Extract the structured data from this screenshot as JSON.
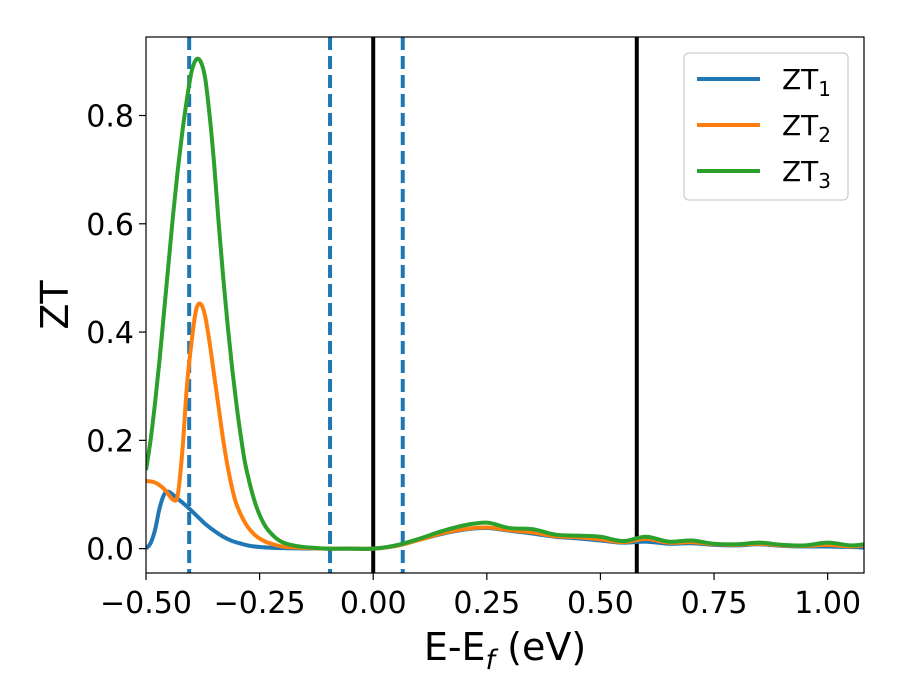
{
  "chart_data": {
    "type": "line",
    "xlabel": {
      "base": "E-E",
      "sub": "f",
      "suffix": " (eV)"
    },
    "ylabel": "ZT",
    "xlim": [
      -0.5,
      1.08
    ],
    "ylim": [
      -0.045,
      0.945
    ],
    "x_ticks": [
      {
        "value": -0.5,
        "label": "−0.50"
      },
      {
        "value": -0.25,
        "label": "−0.25"
      },
      {
        "value": 0.0,
        "label": "0.00"
      },
      {
        "value": 0.25,
        "label": "0.25"
      },
      {
        "value": 0.5,
        "label": "0.50"
      },
      {
        "value": 0.75,
        "label": "0.75"
      },
      {
        "value": 1.0,
        "label": "1.00"
      }
    ],
    "y_ticks": [
      {
        "value": 0.0,
        "label": "0.0"
      },
      {
        "value": 0.2,
        "label": "0.2"
      },
      {
        "value": 0.4,
        "label": "0.4"
      },
      {
        "value": 0.6,
        "label": "0.6"
      },
      {
        "value": 0.8,
        "label": "0.8"
      }
    ],
    "grid": false,
    "legend_position": "top-right",
    "vertical_lines": [
      {
        "x": -0.405,
        "style": "dashed",
        "color": "#1f77b4"
      },
      {
        "x": -0.095,
        "style": "dashed",
        "color": "#1f77b4"
      },
      {
        "x": 0.0,
        "style": "solid",
        "color": "#000000"
      },
      {
        "x": 0.065,
        "style": "dashed",
        "color": "#1f77b4"
      },
      {
        "x": 0.58,
        "style": "solid",
        "color": "#000000"
      }
    ],
    "series": [
      {
        "name": "ZT",
        "sub": "1",
        "color": "#1f77b4",
        "x": [
          -0.5,
          -0.49,
          -0.48,
          -0.47,
          -0.46,
          -0.45,
          -0.43,
          -0.41,
          -0.39,
          -0.37,
          -0.35,
          -0.33,
          -0.31,
          -0.29,
          -0.27,
          -0.25,
          -0.22,
          -0.19,
          -0.15,
          -0.1,
          -0.05,
          0.0,
          0.05,
          0.1,
          0.15,
          0.2,
          0.25,
          0.3,
          0.35,
          0.4,
          0.45,
          0.5,
          0.55,
          0.6,
          0.65,
          0.7,
          0.75,
          0.8,
          0.85,
          0.9,
          0.95,
          1.0,
          1.05,
          1.08
        ],
        "y": [
          0.0,
          0.01,
          0.035,
          0.075,
          0.1,
          0.105,
          0.092,
          0.078,
          0.062,
          0.046,
          0.033,
          0.022,
          0.014,
          0.009,
          0.005,
          0.003,
          0.0015,
          0.0008,
          0.0003,
          0.0001,
          0.0,
          0.0,
          0.005,
          0.016,
          0.027,
          0.035,
          0.038,
          0.033,
          0.028,
          0.022,
          0.019,
          0.015,
          0.011,
          0.013,
          0.009,
          0.01,
          0.007,
          0.006,
          0.008,
          0.005,
          0.004,
          0.004,
          0.003,
          0.002
        ]
      },
      {
        "name": "ZT",
        "sub": "2",
        "color": "#ff7f0e",
        "x": [
          -0.5,
          -0.48,
          -0.46,
          -0.44,
          -0.43,
          -0.42,
          -0.41,
          -0.4,
          -0.39,
          -0.38,
          -0.37,
          -0.36,
          -0.35,
          -0.34,
          -0.33,
          -0.32,
          -0.31,
          -0.3,
          -0.28,
          -0.26,
          -0.24,
          -0.22,
          -0.2,
          -0.17,
          -0.14,
          -0.1,
          -0.05,
          0.0,
          0.05,
          0.1,
          0.15,
          0.2,
          0.25,
          0.3,
          0.35,
          0.4,
          0.45,
          0.5,
          0.55,
          0.6,
          0.65,
          0.7,
          0.75,
          0.8,
          0.85,
          0.9,
          0.95,
          1.0,
          1.05,
          1.08
        ],
        "y": [
          0.125,
          0.122,
          0.11,
          0.09,
          0.1,
          0.18,
          0.3,
          0.38,
          0.44,
          0.452,
          0.43,
          0.38,
          0.32,
          0.26,
          0.2,
          0.15,
          0.11,
          0.08,
          0.045,
          0.025,
          0.014,
          0.008,
          0.004,
          0.002,
          0.001,
          0.0,
          0.0,
          0.0,
          0.005,
          0.016,
          0.028,
          0.036,
          0.039,
          0.034,
          0.03,
          0.023,
          0.021,
          0.017,
          0.012,
          0.018,
          0.011,
          0.012,
          0.008,
          0.007,
          0.009,
          0.006,
          0.005,
          0.007,
          0.004,
          0.006
        ]
      },
      {
        "name": "ZT",
        "sub": "3",
        "color": "#2ca02c",
        "x": [
          -0.5,
          -0.49,
          -0.48,
          -0.47,
          -0.46,
          -0.45,
          -0.44,
          -0.43,
          -0.42,
          -0.41,
          -0.4,
          -0.39,
          -0.38,
          -0.37,
          -0.36,
          -0.35,
          -0.34,
          -0.33,
          -0.32,
          -0.31,
          -0.3,
          -0.29,
          -0.28,
          -0.26,
          -0.24,
          -0.22,
          -0.2,
          -0.17,
          -0.14,
          -0.1,
          -0.05,
          0.0,
          0.05,
          0.1,
          0.15,
          0.2,
          0.25,
          0.3,
          0.35,
          0.4,
          0.45,
          0.5,
          0.55,
          0.6,
          0.65,
          0.7,
          0.75,
          0.8,
          0.85,
          0.9,
          0.95,
          1.0,
          1.05,
          1.08
        ],
        "y": [
          0.145,
          0.2,
          0.27,
          0.35,
          0.44,
          0.53,
          0.62,
          0.7,
          0.77,
          0.83,
          0.88,
          0.903,
          0.9,
          0.87,
          0.8,
          0.71,
          0.6,
          0.5,
          0.41,
          0.33,
          0.26,
          0.2,
          0.15,
          0.085,
          0.045,
          0.024,
          0.012,
          0.005,
          0.002,
          0.0,
          0.0,
          0.0,
          0.006,
          0.018,
          0.032,
          0.043,
          0.048,
          0.038,
          0.036,
          0.026,
          0.024,
          0.022,
          0.014,
          0.022,
          0.013,
          0.015,
          0.009,
          0.008,
          0.011,
          0.007,
          0.006,
          0.011,
          0.006,
          0.008
        ]
      }
    ]
  }
}
